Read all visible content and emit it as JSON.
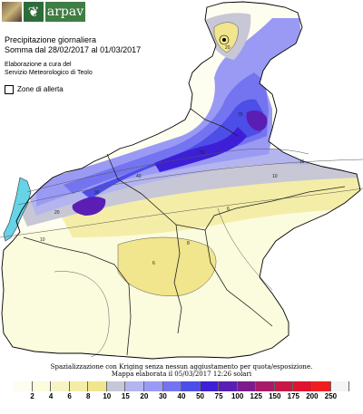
{
  "header": {
    "logo_mark": "❦",
    "logo_text": "arpav",
    "title_line1": "Precipitazione giornaliera",
    "title_line2": "Somma dal 28/02/2017 al 01/03/2017",
    "credit_line1": "Elaborazione a cura del",
    "credit_line2": "Servizio Meteorologico di Teolo",
    "alert_label": "Zone di allerta"
  },
  "map": {
    "contour_labels": [
      "75",
      "50",
      "40",
      "30",
      "20",
      "10",
      "6",
      "6",
      "8",
      "10",
      "15",
      "20"
    ],
    "colors": {
      "lake": "#66d3e6",
      "boundary": "#333333"
    }
  },
  "footer": {
    "note_line1": "Spazializzazione con Kriging senza nessun aggiustamento per quota/esposizione.",
    "note_line2": "Mappa elaborata il 05/03/2017 12:26 solari"
  },
  "legend": {
    "ticks": [
      "2",
      "4",
      "6",
      "8",
      "10",
      "15",
      "20",
      "30",
      "40",
      "50",
      "75",
      "100",
      "125",
      "150",
      "175",
      "200",
      "250"
    ],
    "colors": [
      "#fdfdf0",
      "#fbfbde",
      "#f7f4c4",
      "#f4eda7",
      "#f1e58d",
      "#c7c7d6",
      "#b4b4ee",
      "#9a9af5",
      "#7474f0",
      "#4d4de8",
      "#3c1fd6",
      "#5a1eb4",
      "#7d1c8c",
      "#a81a6a",
      "#c81846",
      "#e0142e",
      "#f01e1e",
      "#f4f4f4"
    ]
  }
}
